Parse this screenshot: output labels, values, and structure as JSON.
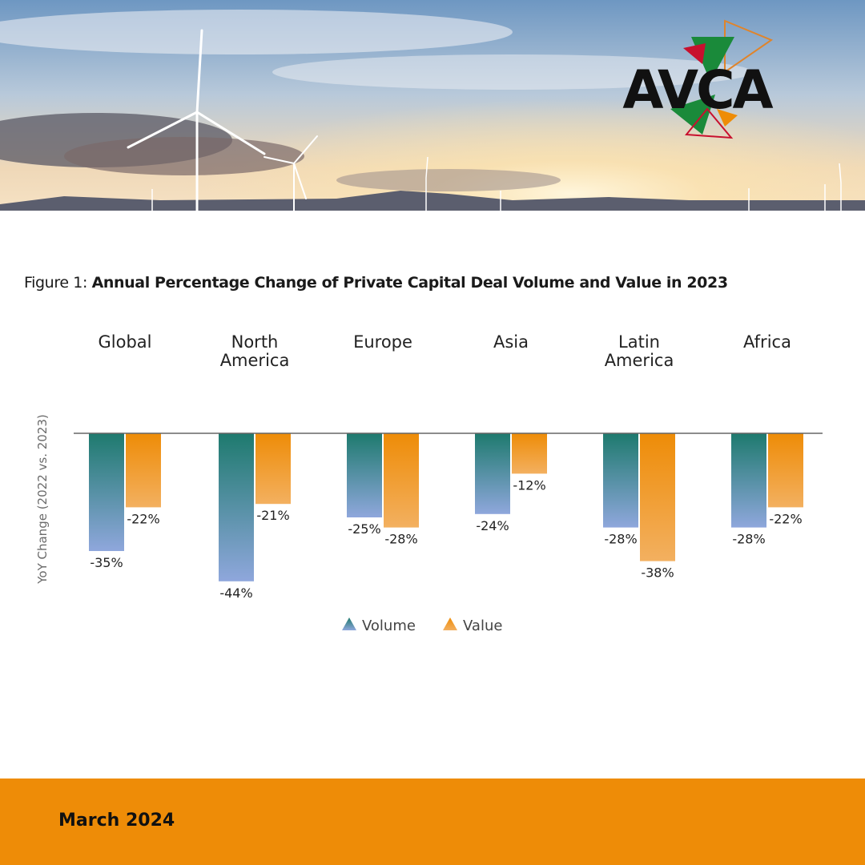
{
  "brand": {
    "logo_text": "AVCA",
    "accent_green": "#1a8a3a",
    "accent_red": "#c8102e",
    "accent_orange": "#ee8c07"
  },
  "chart_title": {
    "prefix": "Figure 1: ",
    "text": "Annual Percentage Change of Private Capital Deal Volume and Value in 2023"
  },
  "chart_data": {
    "type": "bar",
    "title": "Annual Percentage Change of Private Capital Deal Volume and Value in 2023",
    "ylabel": "YoY Change (2022 vs. 2023)",
    "xlabel": "",
    "categories": [
      "Global",
      "North America",
      "Europe",
      "Asia",
      "Latin America",
      "Africa"
    ],
    "category_lines": [
      [
        "Global"
      ],
      [
        "North",
        "America"
      ],
      [
        "Europe"
      ],
      [
        "Asia"
      ],
      [
        "Latin",
        "America"
      ],
      [
        "Africa"
      ]
    ],
    "series": [
      {
        "name": "Volume",
        "values": [
          -35,
          -44,
          -25,
          -24,
          -28,
          -28
        ],
        "labels": [
          "-35%",
          "-44%",
          "-25%",
          "-24%",
          "-28%",
          "-28%"
        ],
        "color": "#1e7a6e",
        "color_end": "#8fa7dc"
      },
      {
        "name": "Value",
        "values": [
          -22,
          -21,
          -28,
          -12,
          -38,
          -22
        ],
        "labels": [
          "-22%",
          "-21%",
          "-28%",
          "-12%",
          "-38%",
          "-22%"
        ],
        "color": "#ee8c07",
        "color_end": "#f3b060"
      }
    ],
    "ylim": [
      -50,
      0
    ],
    "grid": false,
    "legend": "bottom-center"
  },
  "footer": {
    "date": "March 2024"
  }
}
